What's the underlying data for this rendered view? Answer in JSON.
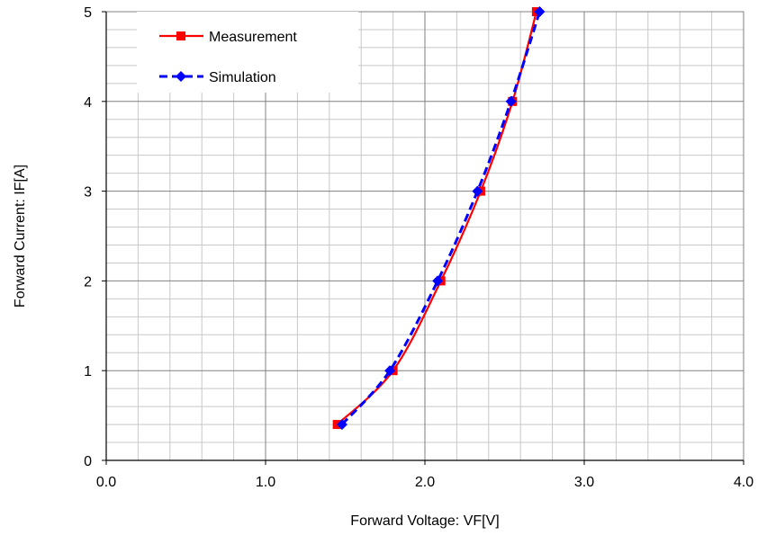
{
  "chart_data": {
    "type": "line",
    "title": "",
    "xlabel": "Forward Voltage: VF[V]",
    "ylabel": "Forward Current: IF[A]",
    "xlim": [
      0.0,
      4.0
    ],
    "ylim": [
      0,
      5
    ],
    "x_major_ticks": [
      "0.0",
      "1.0",
      "2.0",
      "3.0",
      "4.0"
    ],
    "y_major_ticks": [
      "0",
      "1",
      "2",
      "3",
      "4",
      "5"
    ],
    "x_minor_step": 0.2,
    "y_minor_step": 0.2,
    "grid": true,
    "legend_position": "top-left",
    "series": [
      {
        "name": "Measurement",
        "color": "#ff0000",
        "marker": "square",
        "line_style": "solid",
        "x": [
          1.45,
          1.8,
          2.1,
          2.35,
          2.55,
          2.7
        ],
        "y": [
          0.4,
          1.0,
          2.0,
          3.0,
          4.0,
          5.0
        ]
      },
      {
        "name": "Simulation",
        "color": "#0000ff",
        "marker": "diamond",
        "line_style": "dashed",
        "x": [
          1.48,
          1.78,
          2.08,
          2.33,
          2.54,
          2.72
        ],
        "y": [
          0.4,
          1.0,
          2.0,
          3.0,
          4.0,
          5.0
        ]
      }
    ]
  }
}
